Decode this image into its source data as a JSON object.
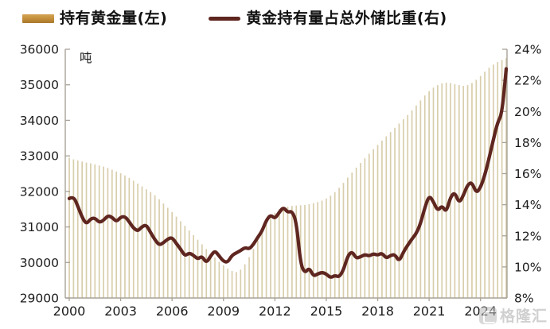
{
  "legend": {
    "items": [
      {
        "label": "持有黄金量(左)",
        "color": "#C6913C",
        "swatch": "bar"
      },
      {
        "label": "黄金持有量占总外储比重(右)",
        "color": "#5F2620",
        "swatch": "line"
      }
    ]
  },
  "watermark": {
    "text": "格隆汇"
  },
  "chart_data": {
    "type": "bar",
    "subtype": "dual-axis bar + line combo, quarterly data 2000 - 2025Q3",
    "title": "",
    "xlabel": "",
    "x_tick_labels": [
      "2000",
      "2003",
      "2006",
      "2009",
      "2012",
      "2015",
      "2018",
      "2021",
      "2024"
    ],
    "x_start_year": 2000,
    "x_interval_years": 0.25,
    "left_axis": {
      "label": "吨",
      "min": 29000,
      "max": 36000,
      "step": 1000,
      "applies_to": "持有黄金量(左)"
    },
    "right_axis": {
      "min": 8,
      "max": 24,
      "step": 2,
      "suffix": "%",
      "applies_to": "黄金持有量占总外储比重(右)"
    },
    "grid": false,
    "legend_position": "top",
    "series": [
      {
        "name": "持有黄金量(左)",
        "type": "bar",
        "axis": "left",
        "unit": "吨",
        "color": "#D8CEAC",
        "values": [
          32950,
          32900,
          32870,
          32840,
          32810,
          32790,
          32760,
          32730,
          32700,
          32660,
          32610,
          32560,
          32510,
          32450,
          32380,
          32300,
          32220,
          32140,
          32060,
          31980,
          31890,
          31780,
          31660,
          31540,
          31420,
          31290,
          31160,
          31030,
          30900,
          30770,
          30640,
          30510,
          30380,
          30260,
          30140,
          30020,
          29920,
          29830,
          29760,
          29730,
          29800,
          29950,
          30150,
          30380,
          30620,
          30850,
          31060,
          31250,
          31400,
          31500,
          31550,
          31570,
          31590,
          31600,
          31610,
          31620,
          31640,
          31670,
          31700,
          31740,
          31800,
          31880,
          31980,
          32100,
          32240,
          32390,
          32530,
          32670,
          32800,
          32930,
          33060,
          33190,
          33310,
          33430,
          33550,
          33670,
          33790,
          33910,
          34030,
          34150,
          34280,
          34420,
          34560,
          34700,
          34820,
          34920,
          34990,
          35040,
          35060,
          35050,
          35020,
          34990,
          34970,
          34990,
          35050,
          35140,
          35250,
          35370,
          35480,
          35570,
          35640,
          35700,
          35750
        ]
      },
      {
        "name": "黄金持有量占总外储比重(右)",
        "type": "line",
        "axis": "right",
        "unit": "%",
        "color": "#5F2620",
        "values": [
          14.4,
          14.55,
          13.9,
          13.2,
          12.75,
          13.1,
          13.15,
          12.85,
          13.0,
          13.3,
          13.2,
          12.9,
          13.2,
          13.25,
          12.9,
          12.5,
          12.3,
          12.6,
          12.7,
          12.2,
          11.75,
          11.4,
          11.55,
          11.8,
          11.9,
          11.5,
          11.15,
          10.7,
          10.9,
          10.75,
          10.5,
          10.7,
          10.25,
          10.7,
          11.05,
          10.7,
          10.35,
          10.3,
          10.75,
          10.9,
          11.05,
          11.25,
          11.15,
          11.45,
          11.9,
          12.3,
          13.0,
          13.35,
          13.1,
          13.5,
          13.85,
          13.5,
          13.6,
          12.9,
          10.2,
          9.6,
          9.95,
          9.4,
          9.55,
          9.65,
          9.55,
          9.3,
          9.45,
          9.35,
          9.8,
          10.7,
          11.0,
          10.55,
          10.65,
          10.8,
          10.7,
          10.85,
          10.75,
          10.9,
          10.55,
          10.75,
          10.8,
          10.35,
          10.95,
          11.4,
          11.8,
          12.15,
          12.8,
          13.8,
          14.6,
          14.2,
          13.6,
          13.95,
          13.5,
          14.5,
          14.8,
          14.1,
          14.6,
          15.3,
          15.45,
          14.75,
          15.1,
          15.9,
          17.0,
          18.2,
          19.3,
          19.85,
          22.75
        ]
      }
    ]
  }
}
